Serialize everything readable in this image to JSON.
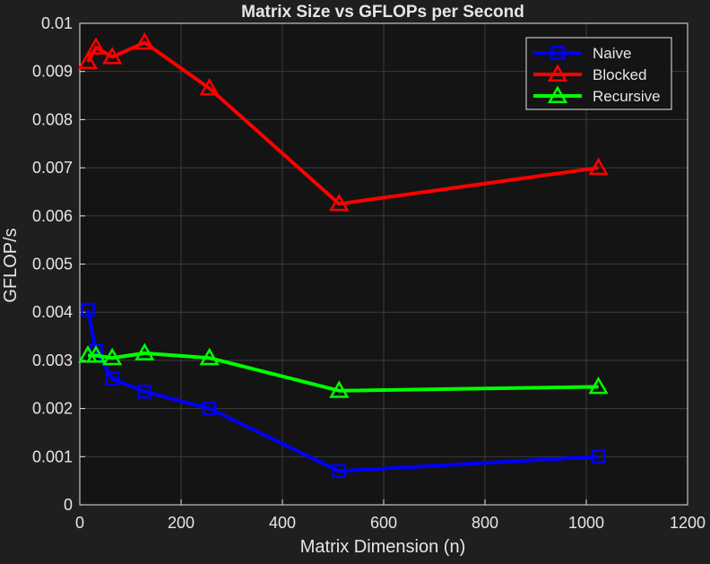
{
  "chart_data": {
    "type": "line",
    "title": "Matrix Size vs GFLOPs per Second",
    "xlabel": "Matrix Dimension (n)",
    "ylabel": "GFLOP/s",
    "xlim": [
      0,
      1200
    ],
    "ylim": [
      0,
      0.01
    ],
    "x_ticks": [
      0,
      200,
      400,
      600,
      800,
      1000,
      1200
    ],
    "y_ticks": [
      0,
      0.001,
      0.002,
      0.003,
      0.004,
      0.005,
      0.006,
      0.007,
      0.008,
      0.009,
      0.01
    ],
    "x_tick_labels": [
      "0",
      "200",
      "400",
      "600",
      "800",
      "1000",
      "1200"
    ],
    "y_tick_labels": [
      "0",
      "0.001",
      "0.002",
      "0.003",
      "0.004",
      "0.005",
      "0.006",
      "0.007",
      "0.008",
      "0.009",
      "0.01"
    ],
    "grid": true,
    "legend_position": "top-right",
    "x": [
      16,
      32,
      64,
      128,
      256,
      512,
      1024
    ],
    "series": [
      {
        "name": "Naive",
        "color": "#0000ff",
        "marker": "square",
        "values": [
          0.00405,
          0.0032,
          0.00262,
          0.00235,
          0.002,
          0.0007,
          0.001
        ]
      },
      {
        "name": "Blocked",
        "color": "#ff0000",
        "marker": "triangle",
        "values": [
          0.0092,
          0.0095,
          0.0093,
          0.0096,
          0.00865,
          0.00625,
          0.007
        ]
      },
      {
        "name": "Recursive",
        "color": "#00ff00",
        "marker": "triangle",
        "values": [
          0.0031,
          0.0031,
          0.00305,
          0.00315,
          0.00305,
          0.00237,
          0.00245
        ]
      }
    ]
  },
  "colors": {
    "figure_background": "#1f1f1f",
    "axes_background": "#141414",
    "grid": "#3c3c3c",
    "text": "#e6e6e6",
    "legend_background": "#141414",
    "legend_border": "#e6e6e6"
  }
}
